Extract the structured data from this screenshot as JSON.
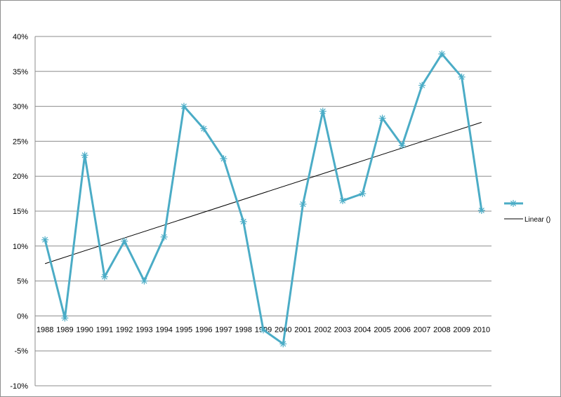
{
  "chart_data": {
    "type": "line",
    "title": "",
    "xlabel": "",
    "ylabel": "",
    "categories": [
      "1988",
      "1989",
      "1990",
      "1991",
      "1992",
      "1993",
      "1994",
      "1995",
      "1996",
      "1997",
      "1998",
      "1999",
      "2000",
      "2001",
      "2002",
      "2003",
      "2004",
      "2005",
      "2006",
      "2007",
      "2008",
      "2009",
      "2010"
    ],
    "series": [
      {
        "name": "",
        "color": "#4bacc6",
        "marker": "star",
        "values": [
          0.109,
          -0.003,
          0.23,
          0.056,
          0.107,
          0.05,
          0.113,
          0.3,
          0.268,
          0.225,
          0.135,
          -0.02,
          -0.04,
          0.16,
          0.293,
          0.165,
          0.175,
          0.283,
          0.244,
          0.33,
          0.375,
          0.342,
          0.151
        ]
      }
    ],
    "trendline": {
      "type": "linear",
      "label": "Linear ()",
      "color": "#000000"
    },
    "ylim": [
      -0.1,
      0.4
    ],
    "ytick_labels": [
      "40%",
      "35%",
      "30%",
      "25%",
      "20%",
      "15%",
      "10%",
      "5%",
      "0%",
      "-5%",
      "-10%"
    ],
    "grid": true,
    "legend": "right"
  }
}
